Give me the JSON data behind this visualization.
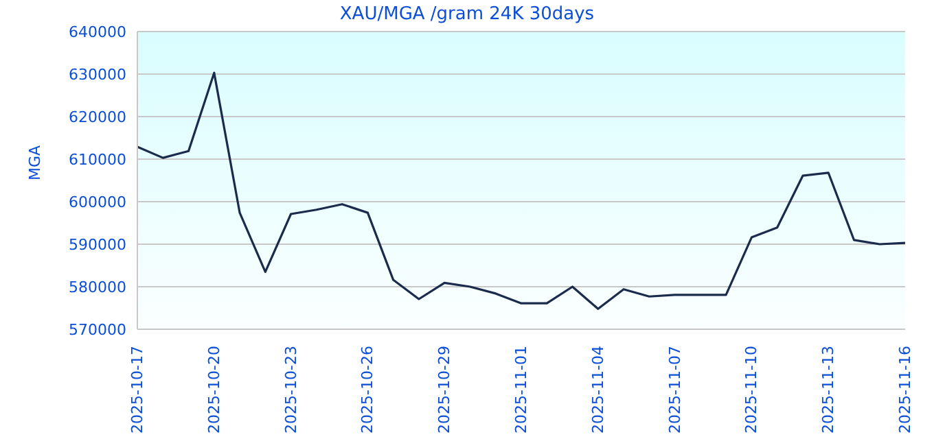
{
  "chart_data": {
    "type": "line",
    "title": "XAU/MGA /gram 24K 30days",
    "ylabel": "MGA",
    "x": [
      "2025-10-17",
      "2025-10-18",
      "2025-10-19",
      "2025-10-20",
      "2025-10-21",
      "2025-10-22",
      "2025-10-23",
      "2025-10-24",
      "2025-10-25",
      "2025-10-26",
      "2025-10-27",
      "2025-10-28",
      "2025-10-29",
      "2025-10-30",
      "2025-10-31",
      "2025-11-01",
      "2025-11-02",
      "2025-11-03",
      "2025-11-04",
      "2025-11-05",
      "2025-11-06",
      "2025-11-07",
      "2025-11-08",
      "2025-11-09",
      "2025-11-10",
      "2025-11-11",
      "2025-11-12",
      "2025-11-13",
      "2025-11-14",
      "2025-11-15",
      "2025-11-16"
    ],
    "series": [
      {
        "color": "#1a2b4c",
        "values": [
          612900,
          610300,
          611900,
          630300,
          597400,
          583500,
          597100,
          598100,
          599400,
          597400,
          581600,
          577100,
          580900,
          580000,
          578400,
          576100,
          576100,
          580000,
          574800,
          579400,
          577700,
          578100,
          578100,
          578100,
          591600,
          593900,
          606100,
          606800,
          591000,
          590000,
          590300
        ]
      }
    ],
    "xlim": [
      "2025-10-17",
      "2025-11-16"
    ],
    "xticks": [
      "2025-10-17",
      "2025-10-20",
      "2025-10-23",
      "2025-10-26",
      "2025-10-29",
      "2025-11-01",
      "2025-11-04",
      "2025-11-07",
      "2025-11-10",
      "2025-11-13",
      "2025-11-16"
    ],
    "ylim": [
      570000,
      640000
    ],
    "yticks": [
      570000,
      580000,
      590000,
      600000,
      610000,
      620000,
      630000,
      640000
    ],
    "grid": "y",
    "legend": false,
    "marker": "none",
    "line_style": "solid"
  }
}
